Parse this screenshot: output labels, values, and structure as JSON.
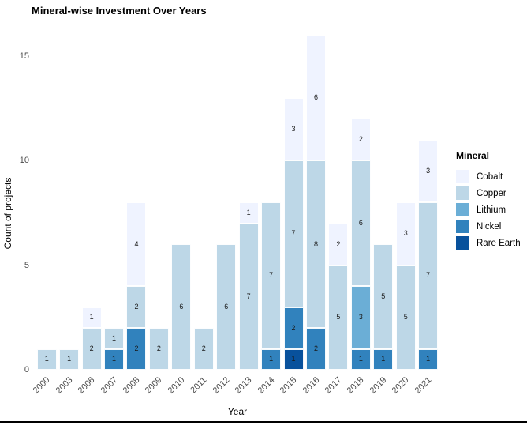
{
  "chart_data": {
    "type": "bar",
    "stacked": true,
    "title": "Mineral-wise Investment Over Years",
    "xlabel": "Year",
    "ylabel": "Count of projects",
    "legend_title": "Mineral",
    "legend_position": "right",
    "grid": false,
    "segment_labels": true,
    "ylim": [
      0,
      16
    ],
    "yticks": [
      0,
      5,
      10,
      15
    ],
    "categories": [
      "2000",
      "2003",
      "2006",
      "2007",
      "2008",
      "2009",
      "2010",
      "2011",
      "2012",
      "2013",
      "2014",
      "2015",
      "2016",
      "2017",
      "2018",
      "2019",
      "2020",
      "2021"
    ],
    "stack_order_top_to_bottom": [
      "Cobalt",
      "Copper",
      "Lithium",
      "Nickel",
      "Rare Earth"
    ],
    "series": [
      {
        "name": "Cobalt",
        "color": "#EFF3FF",
        "values": [
          0,
          0,
          1,
          0,
          4,
          0,
          0,
          0,
          0,
          1,
          0,
          3,
          6,
          2,
          2,
          0,
          3,
          3
        ]
      },
      {
        "name": "Copper",
        "color": "#BDD7E7",
        "values": [
          1,
          1,
          2,
          1,
          2,
          2,
          6,
          2,
          6,
          7,
          7,
          7,
          8,
          5,
          6,
          5,
          5,
          7
        ]
      },
      {
        "name": "Lithium",
        "color": "#6BAED6",
        "values": [
          0,
          0,
          0,
          0,
          0,
          0,
          0,
          0,
          0,
          0,
          0,
          0,
          0,
          0,
          3,
          0,
          0,
          0
        ]
      },
      {
        "name": "Nickel",
        "color": "#3182BD",
        "values": [
          0,
          0,
          0,
          1,
          2,
          0,
          0,
          0,
          0,
          0,
          1,
          2,
          2,
          0,
          1,
          1,
          0,
          1
        ]
      },
      {
        "name": "Rare Earth",
        "color": "#08519C",
        "values": [
          0,
          0,
          0,
          0,
          0,
          0,
          0,
          0,
          0,
          0,
          0,
          1,
          0,
          0,
          0,
          0,
          0,
          0
        ]
      }
    ],
    "totals": [
      1,
      1,
      3,
      2,
      8,
      2,
      6,
      2,
      6,
      8,
      8,
      13,
      16,
      7,
      12,
      6,
      8,
      11
    ]
  }
}
